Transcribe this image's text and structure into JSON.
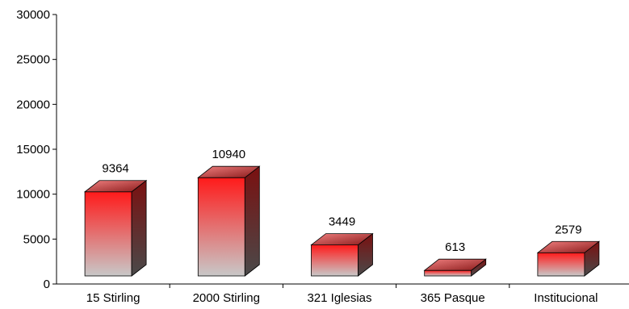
{
  "chart_data": {
    "type": "bar",
    "title": "",
    "xlabel": "",
    "ylabel": "",
    "ylim": [
      0,
      30000
    ],
    "yticks": [
      0,
      5000,
      10000,
      15000,
      20000,
      25000,
      30000
    ],
    "categories": [
      "15 Stirling",
      "2000 Stirling",
      "321 Iglesias",
      "365 Pasque",
      "Institucional"
    ],
    "values": [
      9364,
      10940,
      3449,
      613,
      2579
    ],
    "bar_style": "3d",
    "grid": false,
    "legend": "none",
    "colors": {
      "bar_top": "#ff1a1a",
      "bar_bottom": "#c8c8c8",
      "bar_side": "#7a1010",
      "bar_cap_light": "#f08080",
      "bar_cap_dark": "#8a1a1a",
      "axis": "#000000"
    }
  }
}
